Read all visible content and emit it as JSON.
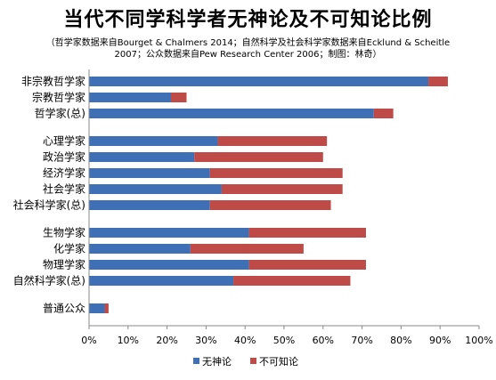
{
  "chart_data": {
    "type": "bar",
    "orientation": "horizontal",
    "stacked": true,
    "title": "当代不同学科学者无神论及不可知论比例",
    "subtitle_lines": [
      "（哲学家数据来自Bourget & Chalmers 2014；自然科学及社会科学家数据来自Ecklund & Scheitle",
      "2007；公众数据来自Pew Research Center 2006；制图：林奇）"
    ],
    "categories": [
      "非宗教哲学家",
      "宗教哲学家",
      "哲学家(总)",
      "心理学家",
      "政治学家",
      "经济学家",
      "社会学家",
      "社会科学家(总)",
      "生物学家",
      "化学家",
      "物理学家",
      "自然科学家(总)",
      "普通公众"
    ],
    "groups": [
      [
        0,
        1,
        2
      ],
      [
        3,
        4,
        5,
        6,
        7
      ],
      [
        8,
        9,
        10,
        11
      ],
      [
        12
      ]
    ],
    "series": [
      {
        "name": "无神论",
        "color": "#3f6fb5",
        "values": [
          87,
          21,
          73,
          33,
          27,
          31,
          34,
          31,
          41,
          26,
          41,
          37,
          4
        ]
      },
      {
        "name": "不可知论",
        "color": "#be4b48",
        "values": [
          5,
          4,
          5,
          28,
          33,
          34,
          31,
          31,
          30,
          29,
          30,
          30,
          1
        ]
      }
    ],
    "x_ticks": [
      "0%",
      "10%",
      "20%",
      "30%",
      "40%",
      "50%",
      "60%",
      "70%",
      "80%",
      "90%",
      "100%"
    ],
    "xlim": [
      0,
      100
    ],
    "grid": false,
    "legend_position": "bottom"
  }
}
